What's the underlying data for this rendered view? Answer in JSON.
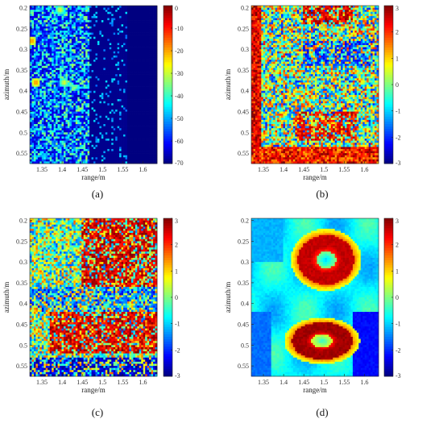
{
  "chart_data": [
    {
      "type": "heatmap",
      "caption": "(a)",
      "xlabel": "range/m",
      "ylabel": "azimuth/m",
      "x_ticks": [
        "1.35",
        "1.4",
        "1.45",
        "1.5",
        "1.55",
        "1.6"
      ],
      "y_ticks": [
        "0.2",
        "0.25",
        "0.3",
        "0.35",
        "0.4",
        "0.45",
        "0.5",
        "0.55"
      ],
      "xlim": [
        1.32,
        1.635
      ],
      "ylim": [
        0.195,
        0.575
      ],
      "colormap": "jet",
      "colorbar_range": [
        -70,
        0
      ],
      "colorbar_ticks": [
        "0",
        "-10",
        "-20",
        "-30",
        "-40",
        "-50",
        "-60",
        "-70"
      ],
      "hotspots": [
        {
          "x": 1.325,
          "y": 0.28,
          "value": -15
        },
        {
          "x": 1.335,
          "y": 0.38,
          "value": -15
        },
        {
          "x": 1.405,
          "y": 0.38,
          "value": -25
        },
        {
          "x": 1.395,
          "y": 0.205,
          "value": -25
        }
      ],
      "field_description": "dense speckle -40..-55 dB for range 1.32-1.46 m, near -70 dB beyond 1.5 m"
    },
    {
      "type": "heatmap",
      "caption": "(b)",
      "xlabel": "range/m",
      "ylabel": "azimuth/m",
      "x_ticks": [
        "1.35",
        "1.4",
        "1.45",
        "1.5",
        "1.55",
        "1.6"
      ],
      "y_ticks": [
        "0.2",
        "0.25",
        "0.3",
        "0.35",
        "0.4",
        "0.45",
        "0.5",
        "0.55"
      ],
      "xlim": [
        1.32,
        1.635
      ],
      "ylim": [
        0.195,
        0.575
      ],
      "colormap": "jet",
      "colorbar_range": [
        -3,
        3
      ],
      "colorbar_ticks": [
        "3",
        "2",
        "1",
        "0",
        "-1",
        "-2",
        "-3"
      ],
      "field_description": "noisy phase, red band along left edge and bottom, red clusters near range 1.45-1.55 m at azimuth 0.2 and 0.45-0.5"
    },
    {
      "type": "heatmap",
      "caption": "(c)",
      "xlabel": "range/m",
      "ylabel": "azimuth/m",
      "x_ticks": [
        "1.35",
        "1.4",
        "1.45",
        "1.5",
        "1.55",
        "1.6"
      ],
      "y_ticks": [
        "0.2",
        "0.25",
        "0.3",
        "0.35",
        "0.4",
        "0.45",
        "0.5",
        "0.55"
      ],
      "xlim": [
        1.32,
        1.635
      ],
      "ylim": [
        0.195,
        0.575
      ],
      "colormap": "jet",
      "colorbar_range": [
        -3,
        3
      ],
      "colorbar_ticks": [
        "3",
        "2",
        "1",
        "0",
        "-1",
        "-2",
        "-3"
      ],
      "field_description": "noisy phase, red regions upper-right (azimuth 0.2-0.35) and lower band (azimuth 0.43-0.52)"
    },
    {
      "type": "heatmap",
      "caption": "(d)",
      "xlabel": "range/m",
      "ylabel": "azimuth/m",
      "x_ticks": [
        "1.35",
        "1.4",
        "1.45",
        "1.5",
        "1.55",
        "1.6"
      ],
      "y_ticks": [
        "0.2",
        "0.25",
        "0.3",
        "0.35",
        "0.4",
        "0.45",
        "0.5",
        "0.55"
      ],
      "xlim": [
        1.32,
        1.635
      ],
      "ylim": [
        0.195,
        0.575
      ],
      "colormap": "jet",
      "colorbar_range": [
        -3,
        3
      ],
      "colorbar_ticks": [
        "3",
        "2",
        "1",
        "0",
        "-1",
        "-2",
        "-3"
      ],
      "rings": [
        {
          "center": [
            1.505,
            0.295
          ],
          "outer_value": 2.6,
          "inner_value": -1.0
        },
        {
          "center": [
            1.495,
            0.49
          ],
          "outer_value": 2.8,
          "inner_value": -0.5
        }
      ],
      "field_description": "smooth cyan/light-blue background, darker blue patches lower-left and bottom-right"
    }
  ]
}
